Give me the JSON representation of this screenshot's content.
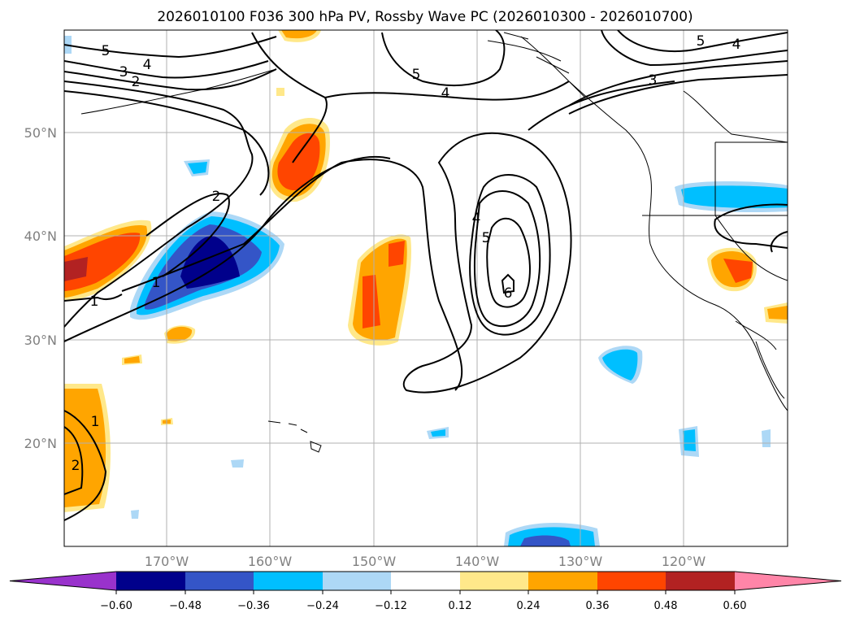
{
  "title": "2026010100 F036 300 hPa PV, Rossby Wave PC (2026010300 - 2026010700)",
  "map": {
    "lat_labels": [
      "50°N",
      "40°N",
      "30°N",
      "20°N"
    ],
    "lon_labels": [
      "170°W",
      "160°W",
      "150°W",
      "140°W",
      "130°W",
      "120°W"
    ],
    "contour_labels": [
      "5",
      "4",
      "3",
      "2",
      "5",
      "4",
      "3",
      "5",
      "4",
      "2",
      "1",
      "1",
      "4",
      "5",
      "6",
      "1",
      "2"
    ]
  },
  "colorbar": {
    "ticks": [
      "−0.60",
      "−0.48",
      "−0.36",
      "−0.24",
      "−0.12",
      "0.12",
      "0.24",
      "0.36",
      "0.48",
      "0.60"
    ],
    "colors": {
      "under": "#9932cc",
      "c1": "#00008b",
      "c2": "#3455c7",
      "c3": "#00bfff",
      "c4": "#add8f6",
      "c5": "#ffffff",
      "c6": "#ffe88a",
      "c7": "#ffa500",
      "c8": "#ff4500",
      "c9": "#b22222",
      "over": "#ff85a8"
    }
  }
}
